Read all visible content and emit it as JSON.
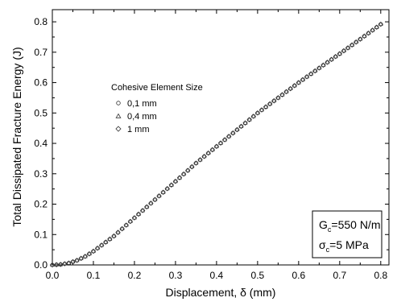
{
  "chart_data": {
    "type": "scatter",
    "xlabel": "Displacement, δ (mm)",
    "ylabel": "Total Dissipated Fracture Energy (J)",
    "xlim": [
      0.0,
      0.82
    ],
    "ylim": [
      0.0,
      0.84
    ],
    "x_ticks": [
      0.0,
      0.1,
      0.2,
      0.3,
      0.4,
      0.5,
      0.6,
      0.7,
      0.8
    ],
    "y_ticks": [
      0.0,
      0.1,
      0.2,
      0.3,
      0.4,
      0.5,
      0.6,
      0.7,
      0.8
    ],
    "x_tick_labels": [
      "0.0",
      "0.1",
      "0.2",
      "0.3",
      "0.4",
      "0.5",
      "0.6",
      "0.7",
      "0.8"
    ],
    "y_tick_labels": [
      "0.0",
      "0.1",
      "0.2",
      "0.3",
      "0.4",
      "0.5",
      "0.6",
      "0.7",
      "0.8"
    ],
    "legend": {
      "title": "Cohesive Element Size",
      "placement": "upper-left"
    },
    "grid": false,
    "curve_points": [
      [
        0.0,
        0.0
      ],
      [
        0.02,
        0.0015
      ],
      [
        0.04,
        0.006
      ],
      [
        0.06,
        0.015
      ],
      [
        0.08,
        0.028
      ],
      [
        0.1,
        0.045
      ],
      [
        0.15,
        0.095
      ],
      [
        0.2,
        0.155
      ],
      [
        0.25,
        0.215
      ],
      [
        0.3,
        0.275
      ],
      [
        0.35,
        0.335
      ],
      [
        0.4,
        0.39
      ],
      [
        0.45,
        0.445
      ],
      [
        0.5,
        0.5
      ],
      [
        0.55,
        0.55
      ],
      [
        0.6,
        0.6
      ],
      [
        0.65,
        0.648
      ],
      [
        0.7,
        0.695
      ],
      [
        0.75,
        0.743
      ],
      [
        0.8,
        0.792
      ]
    ],
    "sample_step": 0.01,
    "series": [
      {
        "name": "0,1 mm",
        "marker": "circle"
      },
      {
        "name": "0,4 mm",
        "marker": "triangle"
      },
      {
        "name": "1 mm",
        "marker": "diamond"
      }
    ],
    "annotation": {
      "line1_main": "G",
      "line1_sub": "c",
      "line1_rest": "=550 N/m",
      "line2_main": "σ",
      "line2_sub": "c",
      "line2_rest": "=5 MPa"
    }
  }
}
